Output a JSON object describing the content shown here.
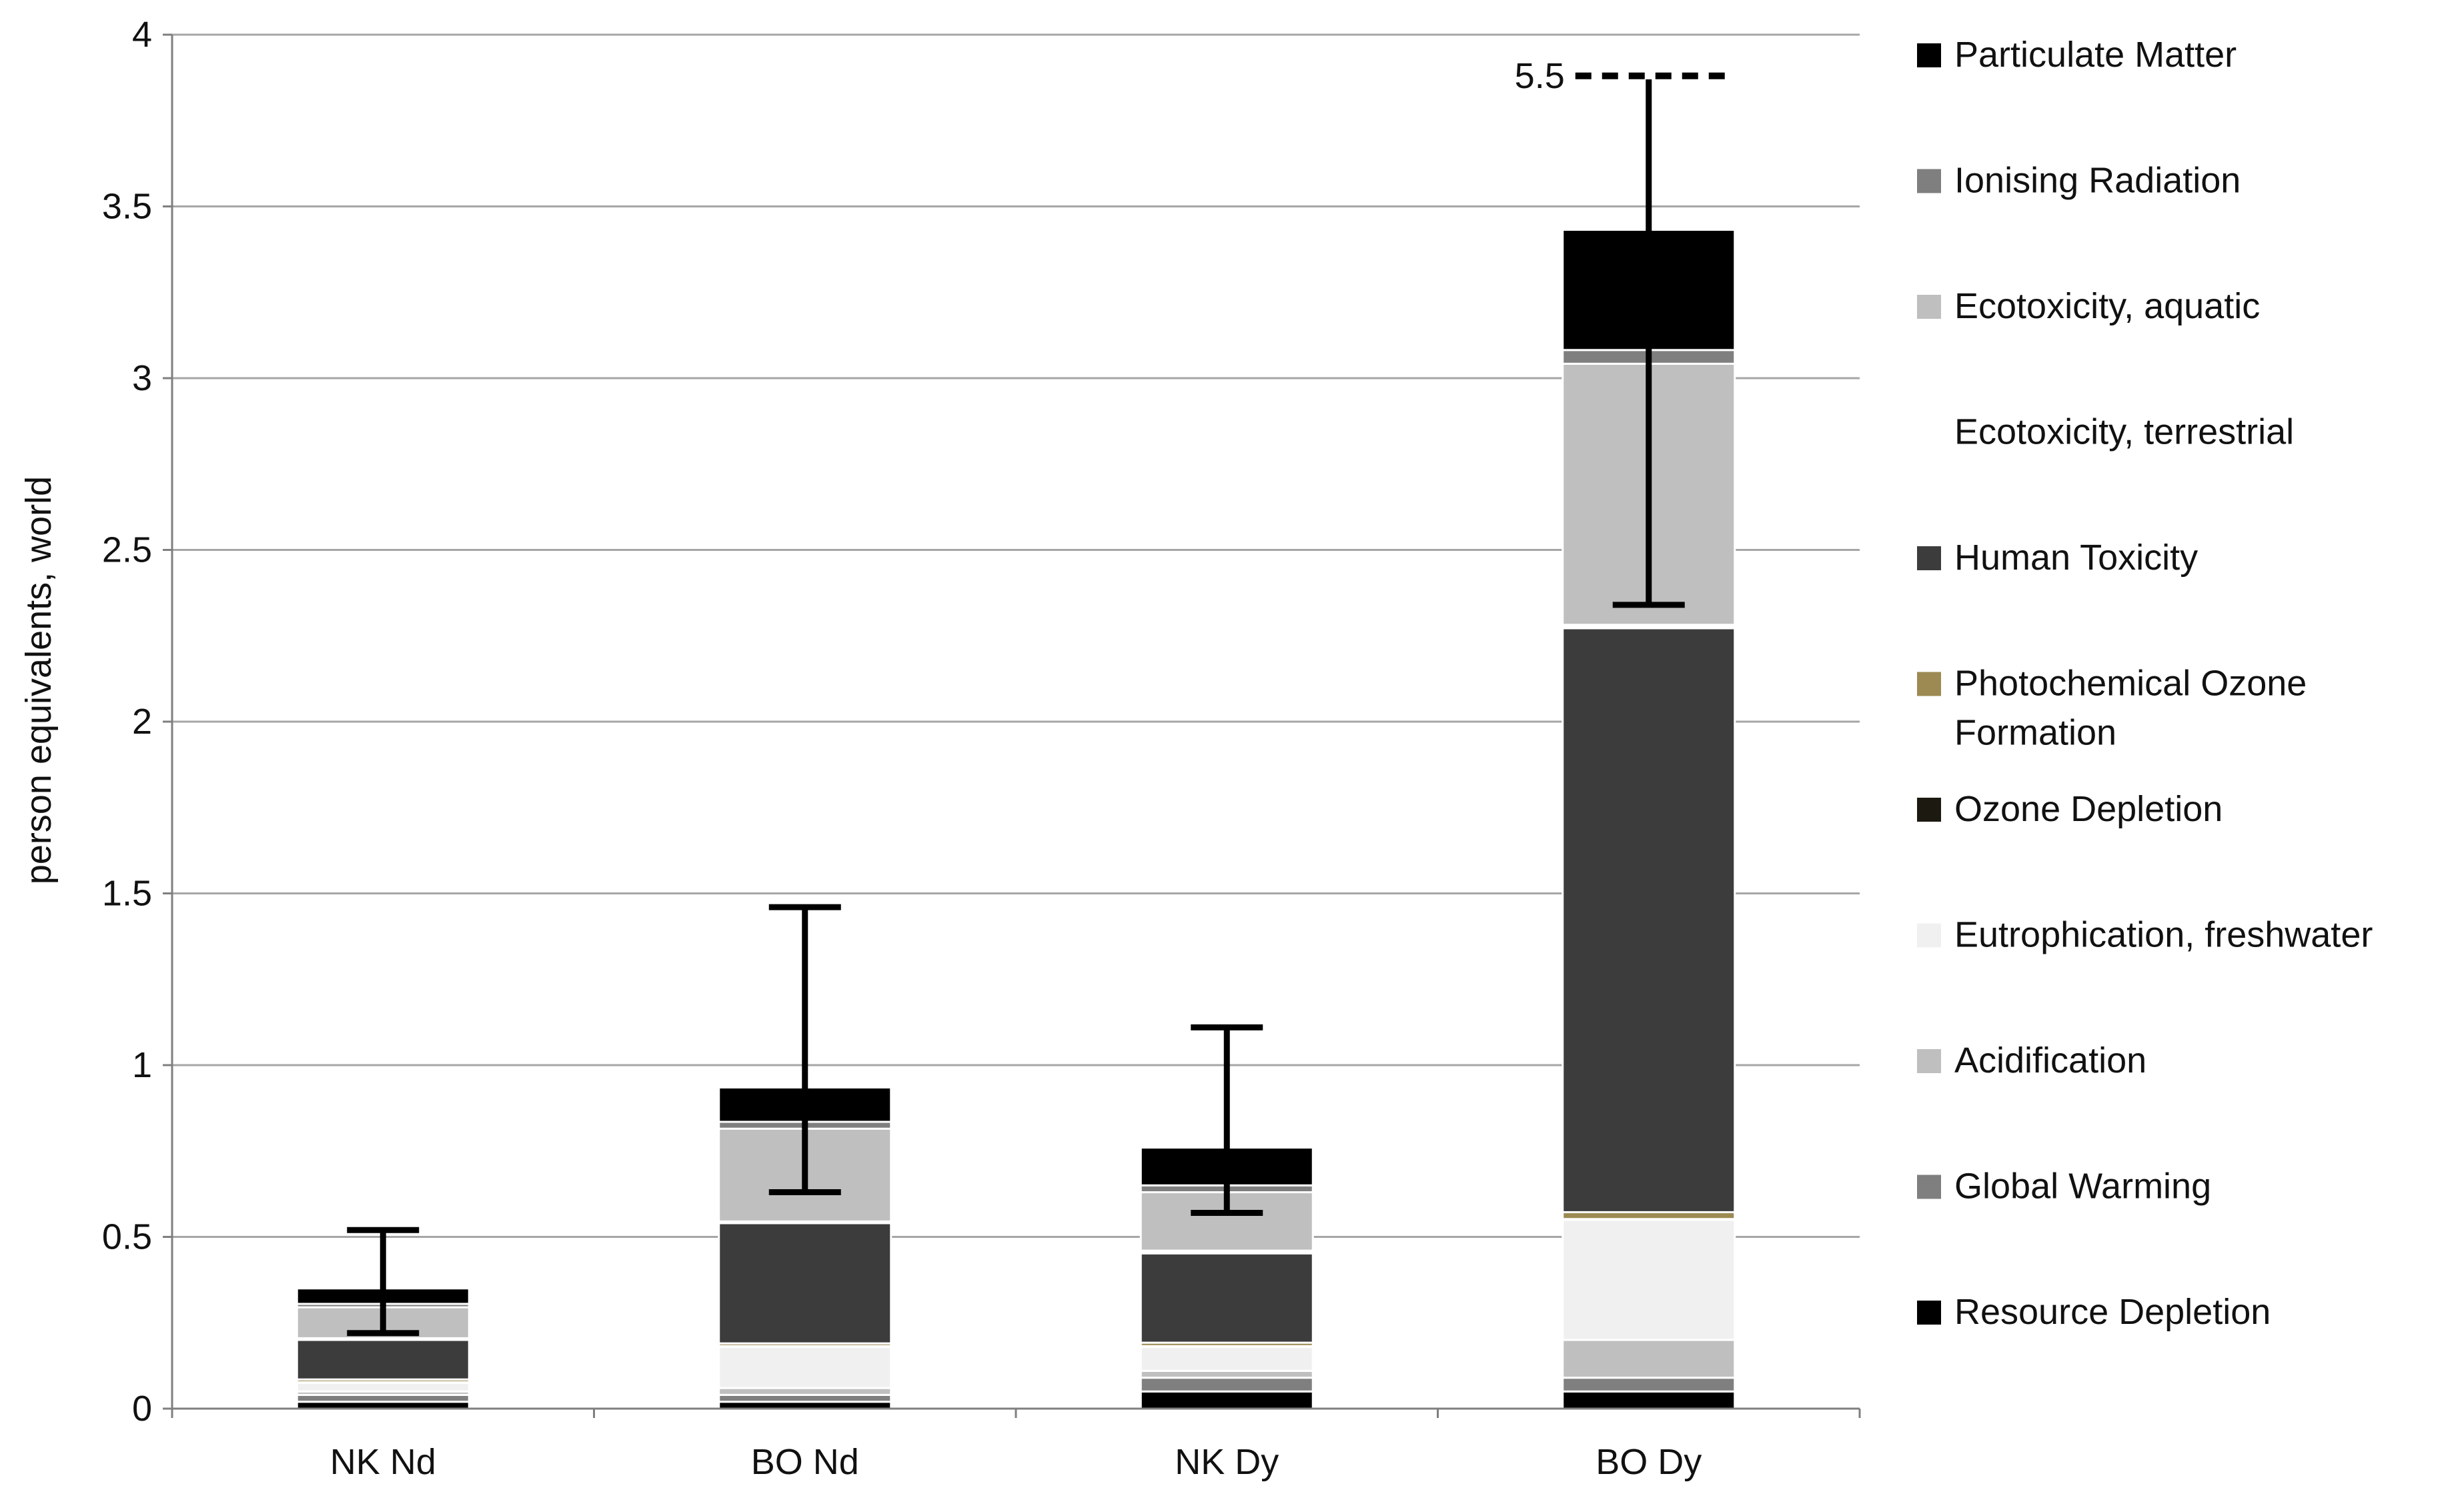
{
  "chart_data": {
    "type": "bar",
    "stacked": true,
    "title": "",
    "xlabel": "",
    "ylabel": "person equivalents, world",
    "ylim": [
      0,
      4
    ],
    "yticks": [
      "0",
      "0.5",
      "1",
      "1.5",
      "2",
      "2.5",
      "3",
      "3.5",
      "4"
    ],
    "grid": true,
    "legend_position": "right",
    "categories": [
      "NK  Nd",
      "BO Nd",
      "NK Dy",
      "BO Dy"
    ],
    "series": [
      {
        "name": "Resource Depletion",
        "color": "#000000",
        "values": [
          0.02,
          0.02,
          0.05,
          0.05
        ]
      },
      {
        "name": "Global Warming",
        "color": "#7f7f7f",
        "values": [
          0.02,
          0.02,
          0.04,
          0.04
        ]
      },
      {
        "name": "Acidification",
        "color": "#bfbfbf",
        "values": [
          0.01,
          0.02,
          0.02,
          0.11
        ]
      },
      {
        "name": "Eutrophication, freshwater",
        "color": "#f0f0f0",
        "values": [
          0.025,
          0.12,
          0.07,
          0.35
        ]
      },
      {
        "name": "Ozone Depletion",
        "color": "#1c1a10",
        "values": [
          0.002,
          0.002,
          0.002,
          0.002
        ]
      },
      {
        "name": "Photochemical Ozone Formation",
        "color": "#9c8a52",
        "values": [
          0.008,
          0.008,
          0.01,
          0.02
        ]
      },
      {
        "name": "Human Toxicity",
        "color": "#3c3c3c",
        "values": [
          0.115,
          0.35,
          0.26,
          1.7
        ]
      },
      {
        "name": "Ecotoxicity, terrestrial",
        "color": "#ffffff",
        "values": [
          0.005,
          0.005,
          0.008,
          0.01
        ]
      },
      {
        "name": "Ecotoxicity, aquatic",
        "color": "#bfbfbf",
        "values": [
          0.09,
          0.27,
          0.17,
          0.76
        ]
      },
      {
        "name": "Ionising Radiation",
        "color": "#7f7f7f",
        "values": [
          0.01,
          0.02,
          0.02,
          0.04
        ]
      },
      {
        "name": "Particulate Matter",
        "color": "#000000",
        "values": [
          0.045,
          0.1,
          0.11,
          0.35
        ]
      }
    ],
    "totals": [
      0.35,
      0.93,
      0.75,
      3.44
    ],
    "error_bars": [
      {
        "low": 0.22,
        "high": 0.52
      },
      {
        "low": 0.63,
        "high": 1.46
      },
      {
        "low": 0.57,
        "high": 1.11
      },
      {
        "low": 2.34,
        "high": 5.5,
        "clipped": true
      }
    ],
    "annotations": [
      {
        "text": "5.5",
        "category": "BO Dy",
        "value": 5.5
      }
    ]
  }
}
